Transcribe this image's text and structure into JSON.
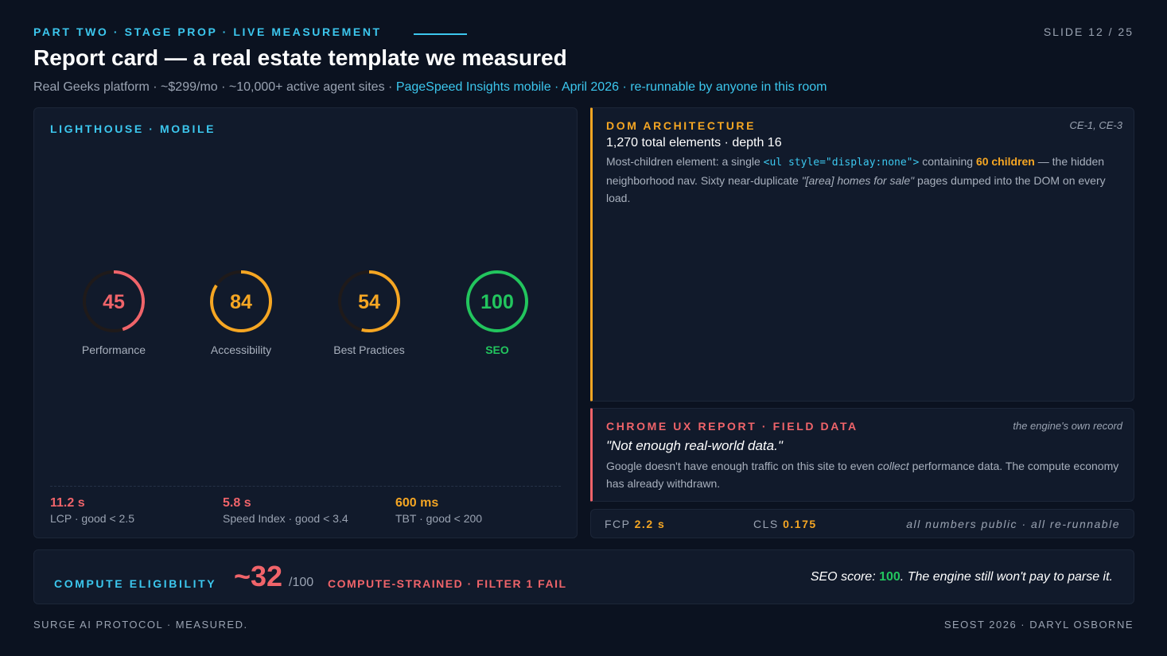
{
  "header": {
    "eyebrow": "PART TWO · STAGE PROP · LIVE MEASUREMENT",
    "slide": "SLIDE 12 / 25",
    "title": "Report card — a real estate template we measured",
    "subtitle": {
      "plain": "Real Geeks platform · ~$299/mo · ~10,000+ active agent sites ·",
      "highlight": "PageSpeed Insights mobile · April 2026 · re-runnable by anyone in this room"
    }
  },
  "lighthouse": {
    "title": "LIGHTHOUSE · MOBILE",
    "scores": [
      {
        "value": 45,
        "label": "Performance",
        "color": "#f0646a"
      },
      {
        "value": 84,
        "label": "Accessibility",
        "color": "#f5a623"
      },
      {
        "value": 54,
        "label": "Best Practices",
        "color": "#f5a623"
      },
      {
        "value": 100,
        "label": "SEO",
        "color": "#22c55e"
      }
    ],
    "metrics": [
      {
        "value": "11.2 s",
        "label": "LCP · good < 2.5",
        "color": "#f0646a"
      },
      {
        "value": "5.8 s",
        "label": "Speed Index · good < 3.4",
        "color": "#f0646a"
      },
      {
        "value": "600 ms",
        "label": "TBT · good < 200",
        "color": "#f5a623"
      }
    ]
  },
  "dom": {
    "title": "DOM ARCHITECTURE",
    "refs": "CE-1, CE-3",
    "headline": "1,270 total elements · depth 16",
    "body": [
      "Most-children element: a single",
      "<ul style=\"display:none\">",
      "containing",
      "60 children",
      "— the hidden neighborhood nav. Sixty near-duplicate",
      "\"[area] homes for sale\"",
      "pages dumped into the DOM on every load."
    ]
  },
  "crux": {
    "title": "CHROME UX REPORT · FIELD DATA",
    "note": "the engine's own record",
    "quote": "\"Not enough real-world data.\"",
    "body": [
      "Google doesn't have enough traffic on this site to even",
      "collect",
      "performance data. The compute economy has already withdrawn."
    ]
  },
  "field_metrics": {
    "fcp": {
      "label": "FCP",
      "value": "2.2 s"
    },
    "cls": {
      "label": "CLS",
      "value": "0.175"
    },
    "note": "all numbers public · all re-runnable"
  },
  "compute": {
    "title": "COMPUTE ELIGIBILITY",
    "score": "~32",
    "scale": {
      "value": 100,
      "label": "/100"
    },
    "status": "COMPUTE-STRAINED · FILTER 1 FAIL",
    "verdict": [
      "SEO score:",
      "100",
      ". The engine still won't pay to parse it."
    ]
  },
  "footer": {
    "left": "SURGE AI PROTOCOL · MEASURED.",
    "right": "SEOST 2026 · DARYL OSBORNE"
  }
}
